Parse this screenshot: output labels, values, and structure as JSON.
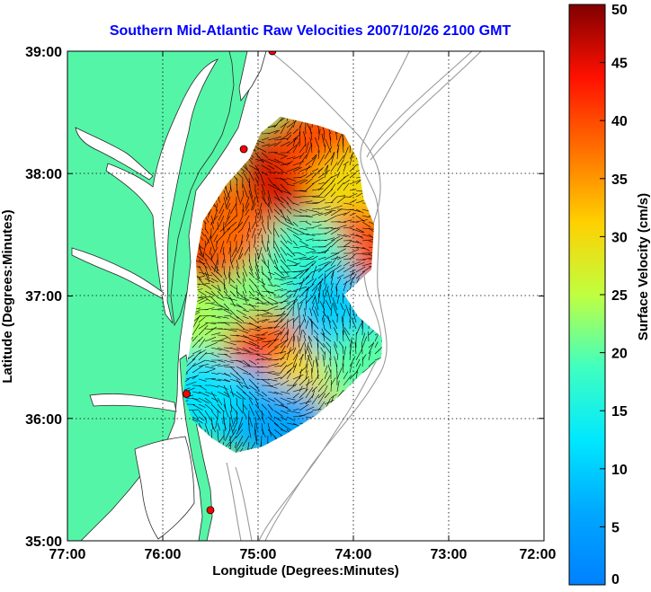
{
  "chart_data": {
    "type": "heatmap",
    "title": "Southern Mid-Atlantic Raw Velocities 2007/10/26 2100 GMT",
    "xlabel": "Longitude (Degrees:Minutes)",
    "ylabel": "Latitude (Degrees:Minutes)",
    "x_ticks": [
      "77:00",
      "76:00",
      "75:00",
      "74:00",
      "73:00",
      "72:00"
    ],
    "y_ticks": [
      "39:00",
      "38:00",
      "37:00",
      "36:00",
      "35:00"
    ],
    "xlim_west_deg": [
      77,
      72
    ],
    "ylim_deg": [
      35,
      39
    ],
    "grid": true,
    "colorbar": {
      "label": "Surface Velocity (cm/s)",
      "range": [
        0,
        50
      ],
      "ticks": [
        "0",
        "5",
        "10",
        "15",
        "20",
        "25",
        "30",
        "35",
        "40",
        "45",
        "50"
      ]
    },
    "colors": {
      "land": "#55f5a8",
      "water": "#ffffff",
      "bathymetry": "#9a9a9a",
      "station": "#ff0000"
    },
    "observations": [
      {
        "lon": -75.6,
        "lat": 37.3,
        "speed": 45
      },
      {
        "lon": -75.3,
        "lat": 37.6,
        "speed": 38
      },
      {
        "lon": -74.7,
        "lat": 38.0,
        "speed": 46
      },
      {
        "lon": -74.35,
        "lat": 38.2,
        "speed": 40
      },
      {
        "lon": -74.0,
        "lat": 37.85,
        "speed": 30
      },
      {
        "lon": -73.95,
        "lat": 37.35,
        "speed": 40
      },
      {
        "lon": -75.7,
        "lat": 36.8,
        "speed": 24
      },
      {
        "lon": -75.0,
        "lat": 36.9,
        "speed": 22
      },
      {
        "lon": -74.5,
        "lat": 37.3,
        "speed": 18
      },
      {
        "lon": -74.9,
        "lat": 36.5,
        "speed": 40
      },
      {
        "lon": -74.4,
        "lat": 36.3,
        "speed": 30
      },
      {
        "lon": -74.0,
        "lat": 36.7,
        "speed": 12
      },
      {
        "lon": -74.2,
        "lat": 36.9,
        "speed": 10
      },
      {
        "lon": -75.2,
        "lat": 36.1,
        "speed": 8
      },
      {
        "lon": -74.7,
        "lat": 35.9,
        "speed": 6
      },
      {
        "lon": -75.6,
        "lat": 36.2,
        "speed": 12
      },
      {
        "lon": -73.85,
        "lat": 36.4,
        "speed": 20
      }
    ],
    "stations": [
      {
        "lon": -74.85,
        "lat": 39.0
      },
      {
        "lon": -75.15,
        "lat": 38.2
      },
      {
        "lon": -75.75,
        "lat": 36.2
      },
      {
        "lon": -75.5,
        "lat": 35.25
      }
    ]
  }
}
